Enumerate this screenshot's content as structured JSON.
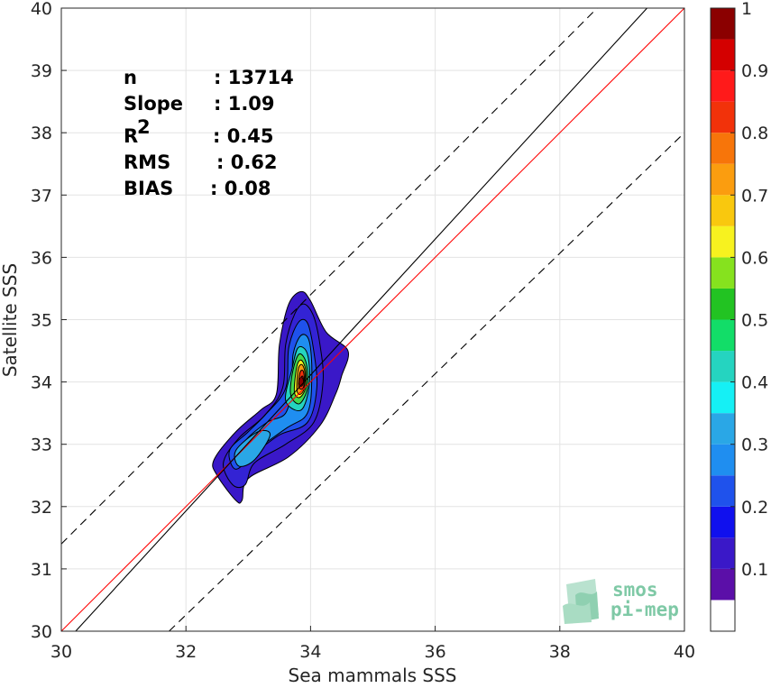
{
  "chart_data": {
    "type": "contour",
    "xlabel": "Sea mammals SSS",
    "ylabel": "Satellite SSS",
    "xlim": [
      30,
      40
    ],
    "ylim": [
      30,
      40
    ],
    "x_ticks": [
      30,
      32,
      34,
      36,
      38,
      40
    ],
    "y_ticks": [
      30,
      31,
      32,
      33,
      34,
      35,
      36,
      37,
      38,
      39,
      40
    ],
    "grid": true,
    "stats": [
      {
        "label": "n",
        "sep": ": ",
        "value": "13714"
      },
      {
        "label": "Slope",
        "sep": ": ",
        "value": "1.09"
      },
      {
        "label": "R",
        "sup": "2",
        "sep": ": ",
        "value": "0.45"
      },
      {
        "label": "RMS",
        "sep": ": ",
        "value": "0.62"
      },
      {
        "label": "BIAS",
        "sep": ": ",
        "value": "0.08"
      }
    ],
    "lines": [
      {
        "role": "identity",
        "color": "#ff0000",
        "style": "solid",
        "slope": 1.0,
        "intercept": 0.0
      },
      {
        "role": "regression",
        "color": "#000000",
        "style": "solid",
        "points": [
          [
            30.23,
            30.0
          ],
          [
            39.4,
            40.0
          ]
        ]
      },
      {
        "role": "upper-bound",
        "color": "#000000",
        "style": "dashed",
        "points": [
          [
            30.0,
            31.4
          ],
          [
            38.6,
            40.0
          ]
        ]
      },
      {
        "role": "lower-bound",
        "color": "#000000",
        "style": "dashed",
        "points": [
          [
            31.73,
            30.0
          ],
          [
            40.0,
            38.0
          ]
        ]
      }
    ],
    "density_peak": {
      "x": 33.85,
      "y": 34.0,
      "value": 1.0
    },
    "density_contours": [
      {
        "level": 0.05,
        "color": "#3a18c8",
        "points": [
          [
            32.8,
            32.1
          ],
          [
            32.5,
            32.5
          ],
          [
            32.45,
            32.75
          ],
          [
            32.8,
            33.2
          ],
          [
            33.2,
            33.55
          ],
          [
            33.45,
            33.8
          ],
          [
            33.5,
            34.6
          ],
          [
            33.65,
            35.25
          ],
          [
            33.85,
            35.45
          ],
          [
            34.0,
            35.3
          ],
          [
            34.25,
            34.8
          ],
          [
            34.6,
            34.5
          ],
          [
            34.5,
            34.1
          ],
          [
            34.4,
            33.8
          ],
          [
            34.15,
            33.3
          ],
          [
            33.65,
            32.8
          ],
          [
            33.0,
            32.45
          ],
          [
            32.9,
            32.1
          ]
        ]
      },
      {
        "level": 0.1,
        "color": "#3323d4",
        "points": [
          [
            32.75,
            32.35
          ],
          [
            32.6,
            32.7
          ],
          [
            32.85,
            33.1
          ],
          [
            33.25,
            33.45
          ],
          [
            33.55,
            33.9
          ],
          [
            33.6,
            34.6
          ],
          [
            33.75,
            35.1
          ],
          [
            33.9,
            35.25
          ],
          [
            34.05,
            35.05
          ],
          [
            34.15,
            34.6
          ],
          [
            34.2,
            34.0
          ],
          [
            34.05,
            33.35
          ],
          [
            33.6,
            33.0
          ],
          [
            33.1,
            32.7
          ],
          [
            32.95,
            32.35
          ]
        ]
      },
      {
        "level": 0.2,
        "color": "#1f52ec",
        "points": [
          [
            32.8,
            32.6
          ],
          [
            32.7,
            32.9
          ],
          [
            33.0,
            33.2
          ],
          [
            33.3,
            33.5
          ],
          [
            33.6,
            33.9
          ],
          [
            33.65,
            34.55
          ],
          [
            33.8,
            34.95
          ],
          [
            33.95,
            34.95
          ],
          [
            34.05,
            34.5
          ],
          [
            34.1,
            33.9
          ],
          [
            33.95,
            33.35
          ],
          [
            33.5,
            33.15
          ],
          [
            33.1,
            32.85
          ]
        ]
      },
      {
        "level": 0.3,
        "color": "#1f8ef0",
        "points": [
          [
            32.85,
            32.75
          ],
          [
            32.95,
            33.05
          ],
          [
            33.3,
            33.35
          ],
          [
            33.6,
            33.5
          ],
          [
            33.7,
            33.95
          ],
          [
            33.72,
            34.45
          ],
          [
            33.85,
            34.75
          ],
          [
            33.98,
            34.65
          ],
          [
            34.02,
            34.1
          ],
          [
            33.95,
            33.5
          ],
          [
            33.6,
            33.25
          ]
        ]
      },
      {
        "level": 0.3,
        "color": "#2aa7e6",
        "points": [
          [
            32.85,
            32.65
          ],
          [
            32.8,
            32.9
          ],
          [
            33.15,
            33.2
          ],
          [
            33.35,
            33.15
          ],
          [
            33.1,
            32.75
          ]
        ]
      },
      {
        "level": 0.4,
        "color": "#25d4c0",
        "points": [
          [
            33.6,
            33.7
          ],
          [
            33.7,
            34.2
          ],
          [
            33.8,
            34.55
          ],
          [
            33.95,
            34.45
          ],
          [
            33.98,
            33.95
          ],
          [
            33.85,
            33.55
          ]
        ]
      },
      {
        "level": 0.5,
        "color": "#41d84e",
        "points": [
          [
            33.68,
            33.8
          ],
          [
            33.72,
            34.2
          ],
          [
            33.82,
            34.45
          ],
          [
            33.93,
            34.3
          ],
          [
            33.95,
            33.9
          ],
          [
            33.82,
            33.65
          ]
        ]
      },
      {
        "level": 0.6,
        "color": "#f7f21f",
        "points": [
          [
            33.74,
            33.85
          ],
          [
            33.78,
            34.25
          ],
          [
            33.85,
            34.35
          ],
          [
            33.92,
            34.2
          ],
          [
            33.92,
            33.9
          ],
          [
            33.82,
            33.75
          ]
        ]
      },
      {
        "level": 0.7,
        "color": "#fb9d0f",
        "points": [
          [
            33.78,
            33.88
          ],
          [
            33.8,
            34.2
          ],
          [
            33.86,
            34.28
          ],
          [
            33.91,
            34.15
          ],
          [
            33.9,
            33.9
          ],
          [
            33.83,
            33.8
          ]
        ]
      },
      {
        "level": 0.8,
        "color": "#f2320a",
        "points": [
          [
            33.81,
            33.92
          ],
          [
            33.83,
            34.15
          ],
          [
            33.88,
            34.18
          ],
          [
            33.9,
            34.05
          ],
          [
            33.88,
            33.9
          ]
        ]
      },
      {
        "level": 0.9,
        "color": "#b50000",
        "points": [
          [
            33.83,
            33.95
          ],
          [
            33.85,
            34.08
          ],
          [
            33.88,
            34.08
          ],
          [
            33.88,
            33.97
          ]
        ]
      }
    ],
    "colorbar": {
      "tick_labels": [
        "0.1",
        "0.2",
        "0.3",
        "0.4",
        "0.5",
        "0.6",
        "0.7",
        "0.8",
        "0.9",
        "1"
      ],
      "tick_values": [
        0.1,
        0.2,
        0.3,
        0.4,
        0.5,
        0.6,
        0.7,
        0.8,
        0.9,
        1.0
      ],
      "bands": [
        {
          "from": 0.0,
          "to": 0.05,
          "color": "#ffffff"
        },
        {
          "from": 0.05,
          "to": 0.1,
          "color": "#5b0fa8"
        },
        {
          "from": 0.1,
          "to": 0.15,
          "color": "#3a18c8"
        },
        {
          "from": 0.15,
          "to": 0.2,
          "color": "#1010ee"
        },
        {
          "from": 0.2,
          "to": 0.25,
          "color": "#1f52ec"
        },
        {
          "from": 0.25,
          "to": 0.3,
          "color": "#1f8ef0"
        },
        {
          "from": 0.3,
          "to": 0.35,
          "color": "#2aa7e6"
        },
        {
          "from": 0.35,
          "to": 0.4,
          "color": "#15f0f5"
        },
        {
          "from": 0.4,
          "to": 0.45,
          "color": "#25d4c0"
        },
        {
          "from": 0.45,
          "to": 0.5,
          "color": "#12dd68"
        },
        {
          "from": 0.5,
          "to": 0.55,
          "color": "#22c322"
        },
        {
          "from": 0.55,
          "to": 0.6,
          "color": "#86e21e"
        },
        {
          "from": 0.6,
          "to": 0.65,
          "color": "#f7f21f"
        },
        {
          "from": 0.65,
          "to": 0.7,
          "color": "#f9c80e"
        },
        {
          "from": 0.7,
          "to": 0.75,
          "color": "#fb9d0f"
        },
        {
          "from": 0.75,
          "to": 0.8,
          "color": "#f7750a"
        },
        {
          "from": 0.8,
          "to": 0.85,
          "color": "#f2320a"
        },
        {
          "from": 0.85,
          "to": 0.9,
          "color": "#ff1a1a"
        },
        {
          "from": 0.9,
          "to": 0.95,
          "color": "#d40000"
        },
        {
          "from": 0.95,
          "to": 1.0,
          "color": "#8b0000"
        }
      ]
    }
  },
  "watermark": {
    "line1": "smos",
    "line2": "pi-mep"
  }
}
